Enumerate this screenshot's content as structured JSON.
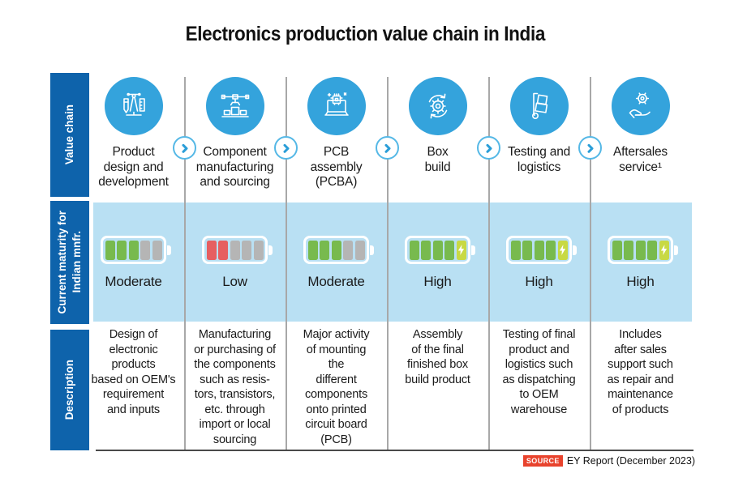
{
  "title": "Electronics production value chain in India",
  "sidebar": {
    "value_chain": "Value chain",
    "maturity": "Current maturity for\nIndian mnfr.",
    "description": "Description"
  },
  "columns": [
    {
      "label": "Product\ndesign and\ndevelopment",
      "icon": "design-tools-icon",
      "maturity": "Moderate",
      "battery": [
        "green",
        "green",
        "green",
        "gray",
        "gray"
      ],
      "description": "Design of\nelectronic\nproducts\nbased on OEM's\nrequirement\nand inputs"
    },
    {
      "label": "Component\nmanufacturing\nand sourcing",
      "icon": "robotic-arm-icon",
      "maturity": "Low",
      "battery": [
        "red",
        "red",
        "gray",
        "gray",
        "gray"
      ],
      "description": "Manufacturing\nor purchasing of\nthe components\nsuch as resis-\ntors, transistors,\netc. through\nimport or local\nsourcing"
    },
    {
      "label": "PCB\nassembly\n(PCBA)",
      "icon": "pcb-chip-icon",
      "maturity": "Moderate",
      "battery": [
        "green",
        "green",
        "green",
        "gray",
        "gray"
      ],
      "description": "Major activity\nof mounting\nthe\ndifferent\ncomponents\nonto printed\ncircuit board\n(PCB)"
    },
    {
      "label": "Box\nbuild",
      "icon": "gear-process-icon",
      "maturity": "High",
      "battery": [
        "green",
        "green",
        "green",
        "green",
        "bolt"
      ],
      "description": "Assembly\nof the final\nfinished box\nbuild product"
    },
    {
      "label": "Testing and\nlogistics",
      "icon": "hand-truck-icon",
      "maturity": "High",
      "battery": [
        "green",
        "green",
        "green",
        "green",
        "bolt"
      ],
      "description": "Testing of final\nproduct and\nlogistics such\nas dispatching\nto OEM\nwarehouse"
    },
    {
      "label": "Aftersales\nservice¹",
      "icon": "service-hand-icon",
      "maturity": "High",
      "battery": [
        "green",
        "green",
        "green",
        "green",
        "bolt"
      ],
      "description": "Includes\nafter sales\nsupport such\nas repair and\nmaintenance\nof products"
    }
  ],
  "source": {
    "badge": "SOURCE",
    "text": "EY Report (December 2023)"
  },
  "colors": {
    "sidebar_blue": "#0e63ab",
    "icon_circle_blue": "#34a3dc",
    "band_blue": "#b9e0f3",
    "battery_green": "#78ba4e",
    "battery_red": "#e65f61",
    "battery_empty": "#b5b5b5",
    "battery_charge": "#c8d944",
    "source_badge_red": "#e8432d",
    "arrow_blue": "#2b9ed8"
  }
}
